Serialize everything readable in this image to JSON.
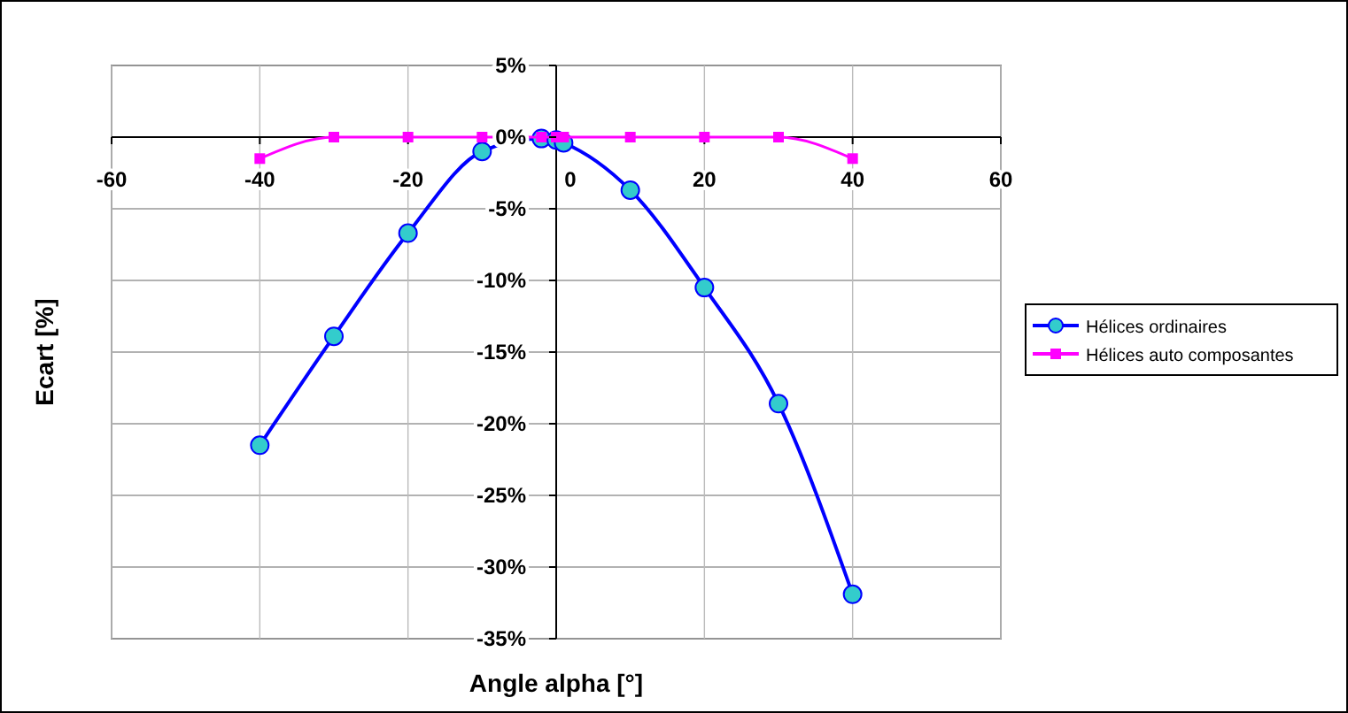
{
  "chart_data": {
    "type": "line",
    "xlabel": "Angle alpha [°]",
    "ylabel": "Ecart [%]",
    "xlim": [
      -60,
      60
    ],
    "xticks": [
      -60,
      -40,
      -20,
      0,
      20,
      40,
      60
    ],
    "ylim": [
      -35,
      5
    ],
    "yticks": [
      {
        "value": 5,
        "label": "5%"
      },
      {
        "value": 0,
        "label": "0%"
      },
      {
        "value": -5,
        "label": "-5%"
      },
      {
        "value": -10,
        "label": "-10%"
      },
      {
        "value": -15,
        "label": "-15%"
      },
      {
        "value": -20,
        "label": "-20%"
      },
      {
        "value": -25,
        "label": "-25%"
      },
      {
        "value": -30,
        "label": "-30%"
      },
      {
        "value": -35,
        "label": "-35%"
      }
    ],
    "grid": true,
    "legend": "right",
    "series": [
      {
        "name": "Hélices ordinaires",
        "color": "#0000ff",
        "marker": "circle",
        "x": [
          -40,
          -30,
          -20,
          -10,
          -2,
          0,
          1,
          10,
          20,
          30,
          40
        ],
        "values": [
          -21.5,
          -13.9,
          -6.7,
          -1.0,
          -0.1,
          -0.2,
          -0.4,
          -3.7,
          -10.5,
          -18.6,
          -31.9
        ]
      },
      {
        "name": "Hélices auto composantes",
        "color": "#ff00ff",
        "marker": "square",
        "x": [
          -40,
          -30,
          -20,
          -10,
          -2,
          0,
          1,
          10,
          20,
          30,
          40
        ],
        "values": [
          -1.5,
          0,
          0,
          0,
          0,
          0,
          0,
          0,
          0,
          0,
          -1.5
        ]
      }
    ]
  }
}
